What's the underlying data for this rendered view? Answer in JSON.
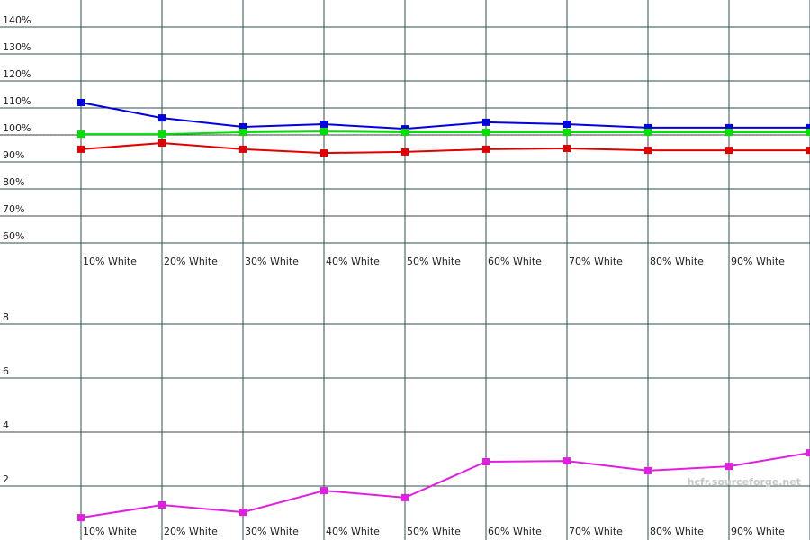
{
  "chart_data": [
    {
      "type": "line",
      "categories": [
        "10% White",
        "20% White",
        "30% White",
        "40% White",
        "50% White",
        "60% White",
        "70% White",
        "80% White",
        "90% White",
        null
      ],
      "series": [
        {
          "color": "#0000e0",
          "values": [
            112,
            106.3,
            103,
            104,
            102.3,
            104.7,
            104,
            102.7,
            102.7,
            102.7
          ]
        },
        {
          "color": "#00e000",
          "values": [
            100.3,
            100.3,
            101,
            101.3,
            101,
            101,
            101,
            101,
            101,
            101
          ]
        },
        {
          "color": "#e00000",
          "values": [
            94.7,
            97,
            94.7,
            93.3,
            93.7,
            94.7,
            95,
            94.3,
            94.3,
            94.3
          ]
        }
      ],
      "ylim": [
        60,
        150
      ],
      "yticks": [
        {
          "value": 60,
          "label": "60%"
        },
        {
          "value": 70,
          "label": "70%"
        },
        {
          "value": 80,
          "label": "80%"
        },
        {
          "value": 90,
          "label": "90%"
        },
        {
          "value": 100,
          "label": "100%"
        },
        {
          "value": 110,
          "label": "110%"
        },
        {
          "value": 120,
          "label": "120%"
        },
        {
          "value": 130,
          "label": "130%"
        },
        {
          "value": 140,
          "label": "140%"
        }
      ],
      "reference_line": 100,
      "grid": true
    },
    {
      "type": "line",
      "categories": [
        "10% White",
        "20% White",
        "30% White",
        "40% White",
        "50% White",
        "60% White",
        "70% White",
        "80% White",
        "90% White",
        null
      ],
      "series": [
        {
          "color": "#e020e0",
          "values": [
            0.83,
            1.3,
            1.03,
            1.83,
            1.57,
            2.9,
            2.93,
            2.57,
            2.73,
            3.23
          ]
        }
      ],
      "ylim": [
        0,
        11
      ],
      "yticks": [
        2,
        4,
        6,
        8
      ],
      "watermark": "hcfr.sourceforge.net",
      "grid": true
    }
  ]
}
